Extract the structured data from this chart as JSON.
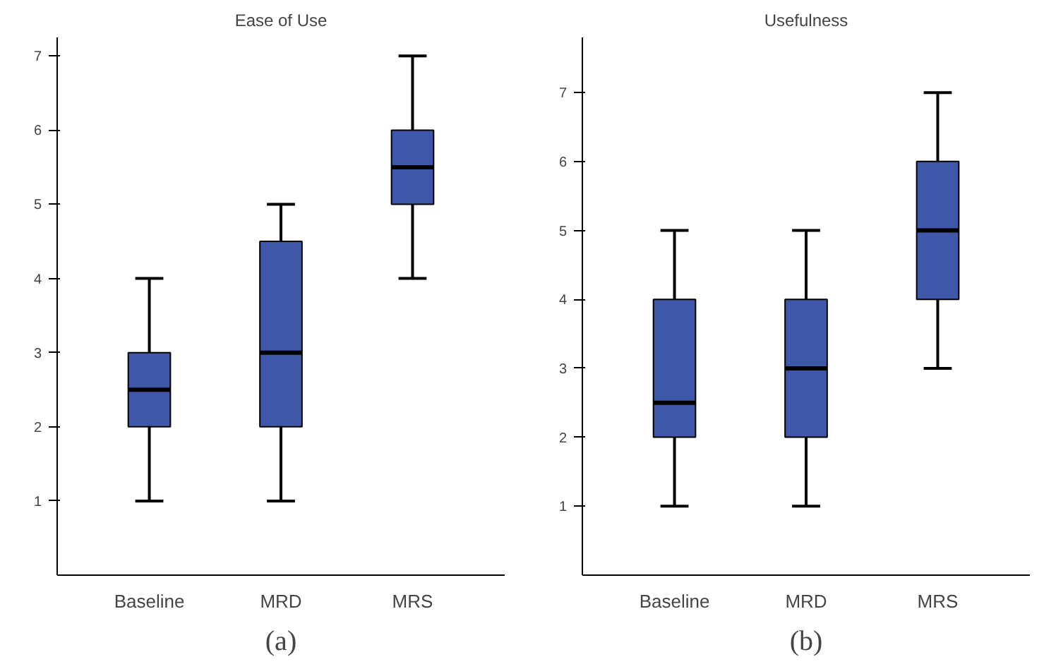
{
  "chart_data": [
    {
      "type": "box",
      "title": "Ease of Use",
      "categories": [
        "Baseline",
        "MRD",
        "MRS"
      ],
      "color": "#3f57a8",
      "boxes": [
        {
          "low": 1,
          "q1": 2,
          "median": 2.5,
          "q3": 3,
          "high": 4
        },
        {
          "low": 1,
          "q1": 2,
          "median": 3,
          "q3": 4.5,
          "high": 5
        },
        {
          "low": 4,
          "q1": 5,
          "median": 5.5,
          "q3": 6,
          "high": 7
        }
      ],
      "ylim": [
        0,
        7.25
      ],
      "yticks": [
        1,
        2,
        3,
        4,
        5,
        6,
        7
      ],
      "grid": false,
      "annotations": [
        "(a)"
      ]
    },
    {
      "type": "box",
      "title": "Usefulness",
      "categories": [
        "Baseline",
        "MRD",
        "MRS"
      ],
      "color": "#3f57a8",
      "boxes": [
        {
          "low": 1,
          "q1": 2,
          "median": 2.5,
          "q3": 4,
          "high": 5
        },
        {
          "low": 1,
          "q1": 2,
          "median": 3,
          "q3": 4,
          "high": 5
        },
        {
          "low": 3,
          "q1": 4,
          "median": 5,
          "q3": 6,
          "high": 7
        }
      ],
      "ylim": [
        0,
        7.8
      ],
      "yticks": [
        1,
        2,
        3,
        4,
        5,
        6,
        7
      ],
      "grid": false,
      "annotations": [
        "(b)"
      ]
    }
  ]
}
